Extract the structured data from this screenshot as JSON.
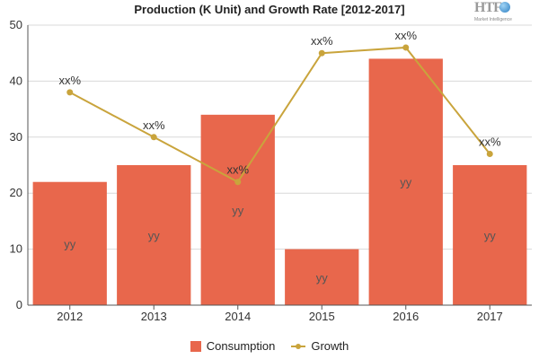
{
  "chart_data": {
    "type": "bar",
    "title": "Production (K Unit) and Growth Rate [2012-2017]",
    "categories": [
      "2012",
      "2013",
      "2014",
      "2015",
      "2016",
      "2017"
    ],
    "ylim": [
      0,
      50
    ],
    "yticks": [
      "0",
      "10",
      "20",
      "30",
      "40",
      "50"
    ],
    "grid": true,
    "legend_position": "bottom",
    "series": [
      {
        "name": "Consumption",
        "type": "bar",
        "color": "#e8674c",
        "values": [
          22,
          25,
          34,
          10,
          44,
          25
        ],
        "data_labels": [
          "yy",
          "yy",
          "yy",
          "yy",
          "yy",
          "yy"
        ]
      },
      {
        "name": "Growth",
        "type": "line",
        "color": "#c9a43c",
        "values": [
          38,
          30,
          22,
          45,
          46,
          27
        ],
        "data_labels": [
          "xx%",
          "xx%",
          "xx%",
          "xx%",
          "xx%",
          "xx%"
        ]
      }
    ]
  },
  "logo": {
    "brand": "HTF",
    "tagline": "Market Intelligence"
  }
}
